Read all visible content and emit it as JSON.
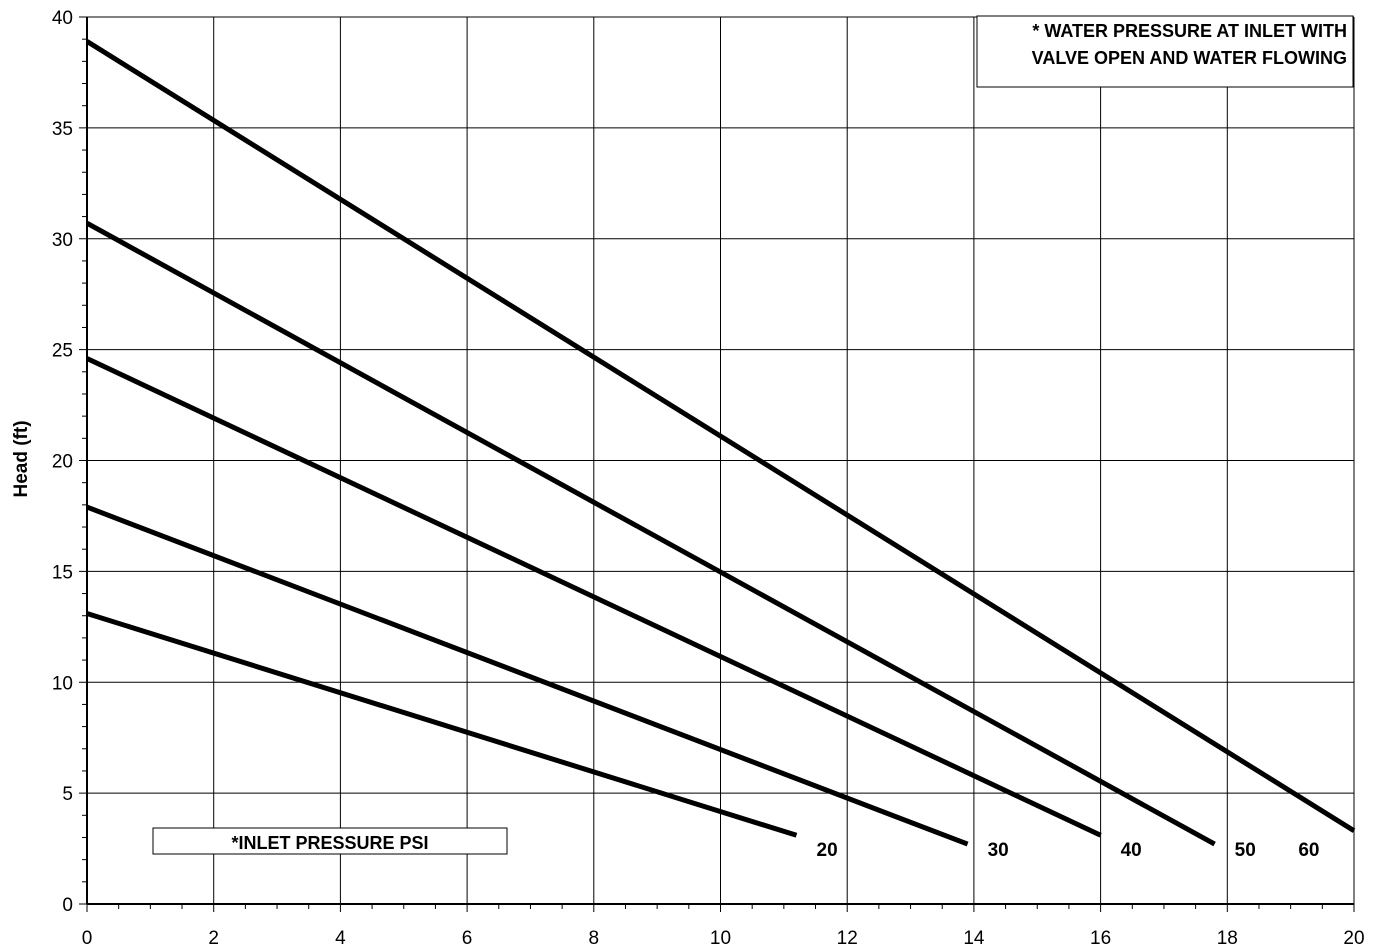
{
  "chart_data": {
    "type": "line",
    "title": "",
    "xlabel": "",
    "ylabel": "Head (ft)",
    "xlim": [
      0,
      20
    ],
    "ylim": [
      0,
      40
    ],
    "xticks": [
      0,
      2,
      4,
      6,
      8,
      10,
      12,
      14,
      16,
      18,
      20
    ],
    "yticks": [
      0,
      5,
      10,
      15,
      20,
      25,
      30,
      35,
      40
    ],
    "grid": true,
    "series": [
      {
        "label": "20",
        "x": [
          0,
          11.2
        ],
        "y": [
          13.1,
          3.1
        ]
      },
      {
        "label": "30",
        "x": [
          0,
          13.9
        ],
        "y": [
          17.9,
          2.7
        ]
      },
      {
        "label": "40",
        "x": [
          0,
          16.0
        ],
        "y": [
          24.6,
          3.1
        ]
      },
      {
        "label": "50",
        "x": [
          0,
          17.8
        ],
        "y": [
          30.7,
          2.7
        ]
      },
      {
        "label": "60",
        "x": [
          0,
          20.0
        ],
        "y": [
          38.9,
          3.3
        ]
      }
    ],
    "annotations": {
      "legend_note": "*INLET PRESSURE  PSI",
      "top_note_line1": "* WATER PRESSURE AT INLET WITH",
      "top_note_line2": "VALVE OPEN AND WATER FLOWING"
    }
  }
}
